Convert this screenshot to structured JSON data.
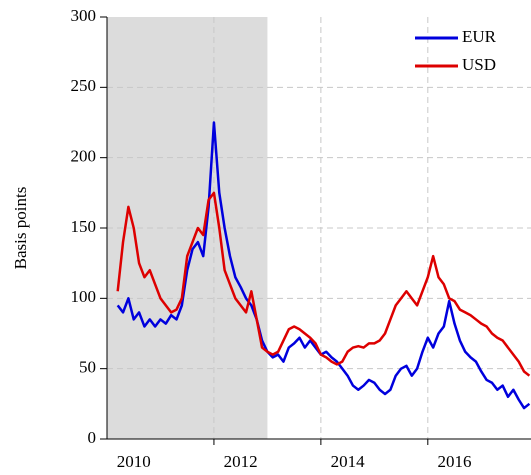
{
  "chart_data": {
    "type": "line",
    "y_label": "Basis points",
    "x": [
      2010.2,
      2010.3,
      2010.4,
      2010.5,
      2010.6,
      2010.7,
      2010.8,
      2010.9,
      2011.0,
      2011.1,
      2011.2,
      2011.3,
      2011.4,
      2011.5,
      2011.6,
      2011.7,
      2011.8,
      2011.9,
      2012.0,
      2012.1,
      2012.2,
      2012.3,
      2012.4,
      2012.5,
      2012.6,
      2012.7,
      2012.8,
      2012.9,
      2013.0,
      2013.1,
      2013.2,
      2013.3,
      2013.4,
      2013.5,
      2013.6,
      2013.7,
      2013.8,
      2013.9,
      2014.0,
      2014.1,
      2014.2,
      2014.3,
      2014.4,
      2014.5,
      2014.6,
      2014.7,
      2014.8,
      2014.9,
      2015.0,
      2015.1,
      2015.2,
      2015.3,
      2015.4,
      2015.5,
      2015.6,
      2015.7,
      2015.8,
      2015.9,
      2016.0,
      2016.1,
      2016.2,
      2016.3,
      2016.4,
      2016.5,
      2016.6,
      2016.7,
      2016.8,
      2016.9,
      2017.0,
      2017.1,
      2017.2,
      2017.3,
      2017.4,
      2017.5,
      2017.6,
      2017.7,
      2017.8,
      2017.9
    ],
    "series": [
      {
        "name": "EUR",
        "color": "#0000dd",
        "values": [
          95,
          90,
          100,
          85,
          90,
          80,
          85,
          80,
          85,
          82,
          88,
          85,
          95,
          120,
          135,
          140,
          130,
          165,
          225,
          175,
          150,
          130,
          115,
          108,
          100,
          95,
          85,
          70,
          62,
          58,
          60,
          55,
          65,
          68,
          72,
          65,
          70,
          65,
          60,
          62,
          58,
          55,
          50,
          45,
          38,
          35,
          38,
          42,
          40,
          35,
          32,
          35,
          45,
          50,
          52,
          45,
          50,
          62,
          72,
          65,
          75,
          80,
          98,
          82,
          70,
          62,
          58,
          55,
          48,
          42,
          40,
          35,
          38,
          30,
          35,
          28,
          22,
          25
        ]
      },
      {
        "name": "USD",
        "color": "#dd0000",
        "values": [
          105,
          140,
          165,
          150,
          125,
          115,
          120,
          110,
          100,
          95,
          90,
          92,
          100,
          130,
          140,
          150,
          145,
          170,
          175,
          150,
          120,
          110,
          100,
          95,
          90,
          105,
          85,
          65,
          62,
          60,
          62,
          70,
          78,
          80,
          78,
          75,
          72,
          68,
          60,
          58,
          55,
          53,
          55,
          62,
          65,
          66,
          65,
          68,
          68,
          70,
          75,
          85,
          95,
          100,
          105,
          100,
          95,
          105,
          115,
          130,
          115,
          110,
          100,
          98,
          92,
          90,
          88,
          85,
          82,
          80,
          75,
          72,
          70,
          65,
          60,
          55,
          48,
          45
        ]
      }
    ],
    "xlim": [
      2010.0,
      2017.93
    ],
    "xticks": [
      {
        "value": 2010.5,
        "label": "2010"
      },
      {
        "value": 2012.5,
        "label": "2012"
      },
      {
        "value": 2014.5,
        "label": "2014"
      },
      {
        "value": 2016.5,
        "label": "2016"
      }
    ],
    "xgrid": [
      2012,
      2014,
      2016
    ],
    "ylim": [
      0,
      300
    ],
    "yticks": [
      0,
      50,
      100,
      150,
      200,
      250,
      300
    ],
    "shaded_region": [
      2010.0,
      2013.0
    ],
    "grid": true,
    "legend": "upper right"
  }
}
